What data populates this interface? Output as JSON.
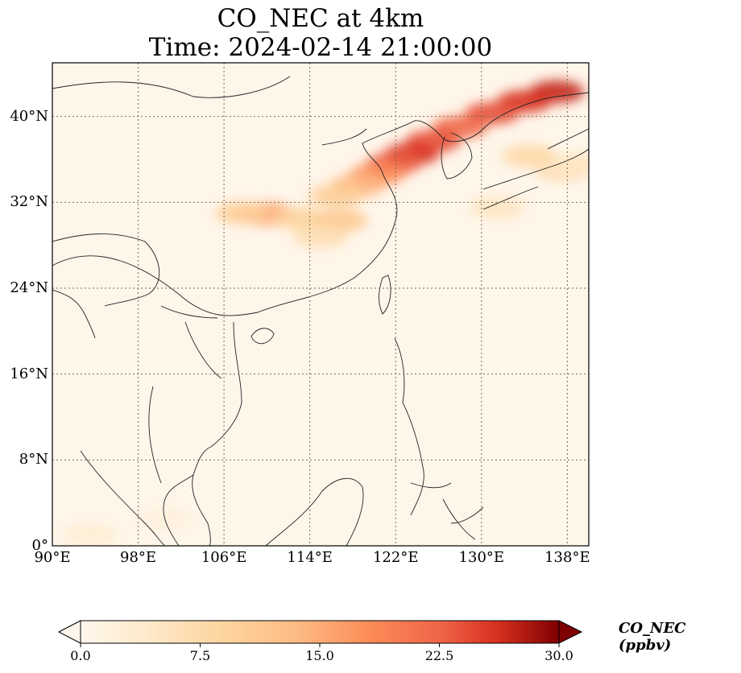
{
  "title_line1": "CO_NEC at 4km",
  "title_line2": "Time: 2024-02-14 21:00:00",
  "map": {
    "lon_range": [
      90,
      140
    ],
    "lat_range": [
      0,
      45
    ],
    "lon_ticks": [
      {
        "value": 90,
        "label": "90°E"
      },
      {
        "value": 98,
        "label": "98°E"
      },
      {
        "value": 106,
        "label": "106°E"
      },
      {
        "value": 114,
        "label": "114°E"
      },
      {
        "value": 122,
        "label": "122°E"
      },
      {
        "value": 130,
        "label": "130°E"
      },
      {
        "value": 138,
        "label": "138°E"
      }
    ],
    "lat_ticks": [
      {
        "value": 0,
        "label": "0°"
      },
      {
        "value": 8,
        "label": "8°N"
      },
      {
        "value": 16,
        "label": "16°N"
      },
      {
        "value": 24,
        "label": "24°N"
      },
      {
        "value": 32,
        "label": "32°N"
      },
      {
        "value": 40,
        "label": "40°N"
      }
    ],
    "gridlines": true,
    "colormap": "OrRd",
    "background_color": "#fff6ea",
    "plumes": [
      {
        "lon": 137.0,
        "lat": 42.3,
        "value": 27
      },
      {
        "lon": 134.0,
        "lat": 41.4,
        "value": 26
      },
      {
        "lon": 131.0,
        "lat": 40.3,
        "value": 24
      },
      {
        "lon": 128.0,
        "lat": 39.0,
        "value": 22
      },
      {
        "lon": 125.5,
        "lat": 37.7,
        "value": 24
      },
      {
        "lon": 123.5,
        "lat": 36.5,
        "value": 26
      },
      {
        "lon": 121.8,
        "lat": 35.6,
        "value": 23
      },
      {
        "lon": 120.3,
        "lat": 34.6,
        "value": 18
      },
      {
        "lon": 118.5,
        "lat": 33.6,
        "value": 14
      },
      {
        "lon": 116.5,
        "lat": 32.6,
        "value": 10
      },
      {
        "lon": 110.0,
        "lat": 30.9,
        "value": 17
      },
      {
        "lon": 107.8,
        "lat": 31.0,
        "value": 10
      },
      {
        "lon": 113.0,
        "lat": 30.5,
        "value": 9
      },
      {
        "lon": 116.8,
        "lat": 30.3,
        "value": 11
      },
      {
        "lon": 115.0,
        "lat": 28.8,
        "value": 7
      },
      {
        "lon": 134.5,
        "lat": 36.3,
        "value": 8
      },
      {
        "lon": 137.5,
        "lat": 35.0,
        "value": 7
      },
      {
        "lon": 131.5,
        "lat": 31.5,
        "value": 5
      },
      {
        "lon": 138.8,
        "lat": 35.5,
        "value": 5
      },
      {
        "lon": 93.5,
        "lat": 1.0,
        "value": 3
      },
      {
        "lon": 100.5,
        "lat": 2.5,
        "value": 2
      }
    ]
  },
  "colorbar": {
    "min": 0,
    "max": 30,
    "ticks": [
      {
        "value": 0,
        "label": "0.0"
      },
      {
        "value": 7.5,
        "label": "7.5"
      },
      {
        "value": 15,
        "label": "15.0"
      },
      {
        "value": 22.5,
        "label": "22.5"
      },
      {
        "value": 30,
        "label": "30.0"
      }
    ],
    "extend": "both",
    "label": "CO_NEC (ppbv)"
  }
}
